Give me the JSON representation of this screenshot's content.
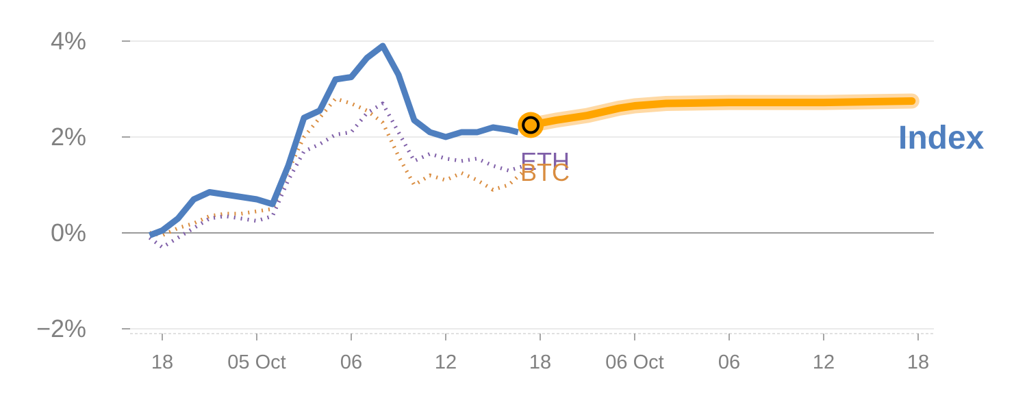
{
  "chart_data": {
    "type": "line",
    "title": "",
    "xlabel": "",
    "ylabel": "",
    "ylim": [
      -2,
      4
    ],
    "y_ticks": [
      {
        "value": 4,
        "label": "4%"
      },
      {
        "value": 2,
        "label": "2%"
      },
      {
        "value": 0,
        "label": "0%"
      },
      {
        "value": -2,
        "label": "−2%"
      }
    ],
    "x_ticks": [
      {
        "x": 1,
        "label": "18"
      },
      {
        "x": 4,
        "label": "05 Oct"
      },
      {
        "x": 7,
        "label": "06"
      },
      {
        "x": 10,
        "label": "12"
      },
      {
        "x": 13,
        "label": "18"
      },
      {
        "x": 16,
        "label": "06 Oct"
      },
      {
        "x": 19,
        "label": "06"
      },
      {
        "x": 22,
        "label": "12"
      },
      {
        "x": 25,
        "label": "18"
      }
    ],
    "grid": true,
    "series": [
      {
        "name": "Index",
        "color": "#4f7fbf",
        "style": "solid",
        "x": [
          0.6,
          1.0,
          1.5,
          2.0,
          2.5,
          3.0,
          3.5,
          4.0,
          4.5,
          5.0,
          5.5,
          6.0,
          6.5,
          7.0,
          7.5,
          8.0,
          8.5,
          9.0,
          9.5,
          10.0,
          10.5,
          11.0,
          11.5,
          12.0,
          12.3
        ],
        "values": [
          -0.05,
          0.05,
          0.3,
          0.7,
          0.85,
          0.8,
          0.75,
          0.7,
          0.6,
          1.4,
          2.4,
          2.55,
          3.2,
          3.25,
          3.65,
          3.9,
          3.3,
          2.35,
          2.1,
          2.0,
          2.1,
          2.1,
          2.2,
          2.15,
          2.1
        ]
      },
      {
        "name": "BTC",
        "color": "#d98c3f",
        "style": "dotted",
        "x": [
          0.6,
          1.0,
          1.5,
          2.0,
          2.5,
          3.0,
          3.5,
          4.0,
          4.5,
          5.0,
          5.5,
          6.0,
          6.5,
          7.0,
          7.5,
          8.0,
          8.5,
          9.0,
          9.5,
          10.0,
          10.5,
          11.0,
          11.5,
          12.0,
          12.5
        ],
        "values": [
          0.0,
          -0.05,
          0.1,
          0.2,
          0.35,
          0.4,
          0.4,
          0.45,
          0.5,
          1.3,
          2.0,
          2.4,
          2.8,
          2.7,
          2.55,
          2.3,
          1.6,
          1.0,
          1.2,
          1.1,
          1.25,
          1.1,
          0.9,
          1.0,
          1.3
        ]
      },
      {
        "name": "ETH",
        "color": "#7f5fa8",
        "style": "dotted",
        "x": [
          0.6,
          1.0,
          1.5,
          2.0,
          2.5,
          3.0,
          3.5,
          4.0,
          4.5,
          5.0,
          5.5,
          6.0,
          6.5,
          7.0,
          7.5,
          8.0,
          8.5,
          9.0,
          9.5,
          10.0,
          10.5,
          11.0,
          11.5,
          12.0,
          12.5
        ],
        "values": [
          -0.1,
          -0.3,
          -0.1,
          0.1,
          0.3,
          0.35,
          0.3,
          0.25,
          0.35,
          1.1,
          1.7,
          1.85,
          2.05,
          2.1,
          2.5,
          2.7,
          2.1,
          1.5,
          1.65,
          1.55,
          1.5,
          1.55,
          1.4,
          1.3,
          1.4
        ]
      },
      {
        "name": "Index",
        "color": "#ffa500",
        "style": "projection",
        "x": [
          12.7,
          13.5,
          14.5,
          15.5,
          16.0,
          17.0,
          19.0,
          22.0,
          24.8
        ],
        "values": [
          2.25,
          2.35,
          2.45,
          2.6,
          2.65,
          2.7,
          2.72,
          2.72,
          2.75
        ]
      }
    ],
    "marker": {
      "x": 12.7,
      "value": 2.25
    },
    "labels": {
      "eth": "ETH",
      "btc": "BTC",
      "index": "Index"
    }
  }
}
